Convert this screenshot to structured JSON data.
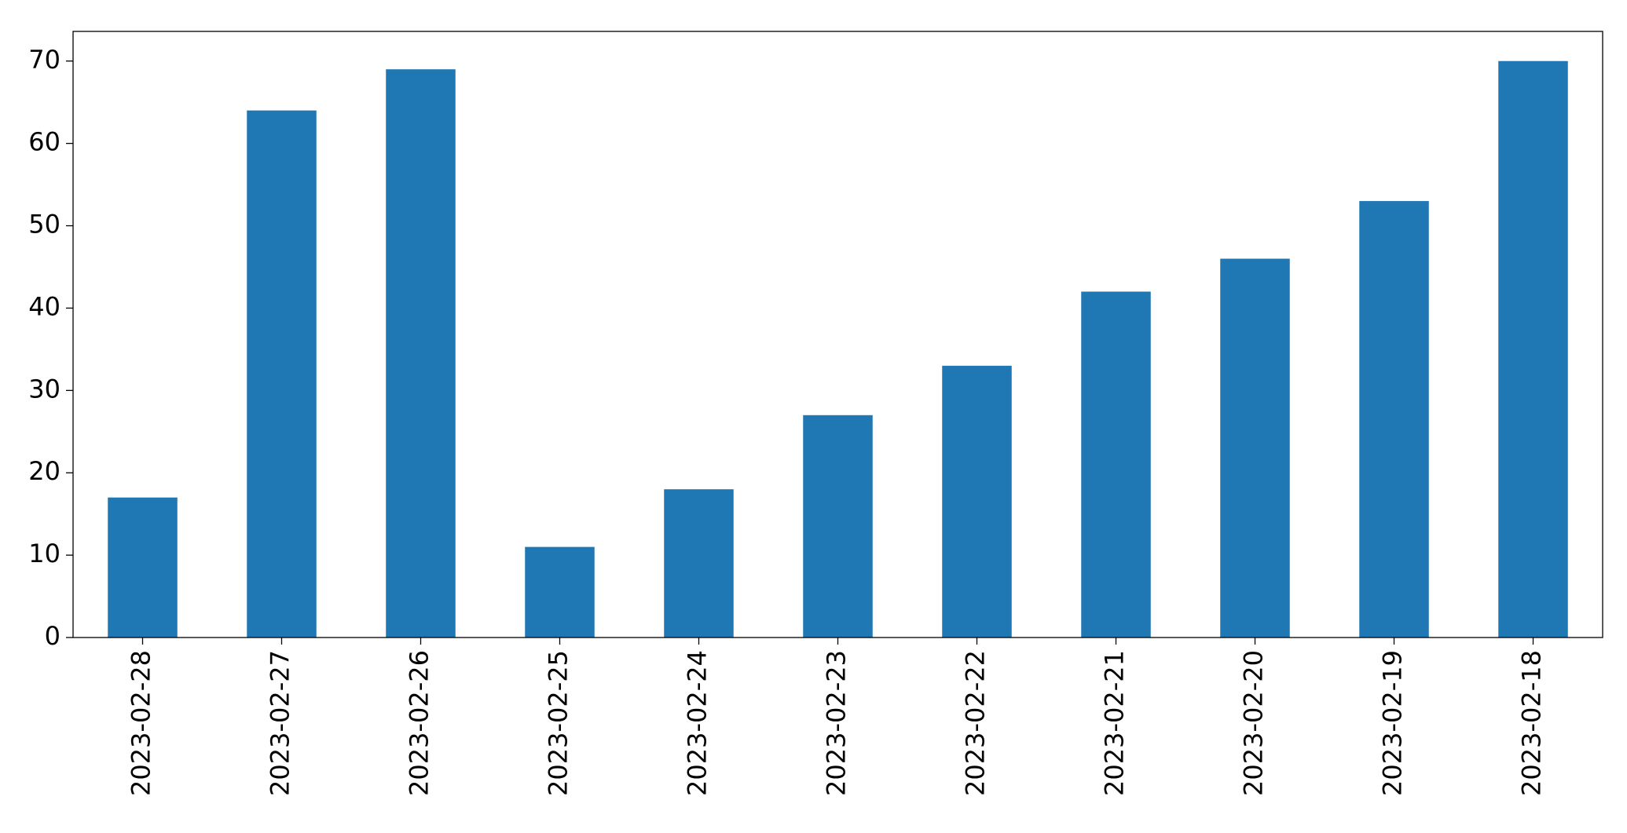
{
  "chart_data": {
    "type": "bar",
    "categories": [
      "2023-02-28",
      "2023-02-27",
      "2023-02-26",
      "2023-02-25",
      "2023-02-24",
      "2023-02-23",
      "2023-02-22",
      "2023-02-21",
      "2023-02-20",
      "2023-02-19",
      "2023-02-18"
    ],
    "values": [
      17,
      64,
      69,
      11,
      18,
      27,
      33,
      42,
      46,
      53,
      70
    ],
    "color": "#1f77b4",
    "ylim": [
      0,
      73.6
    ],
    "yticks": [
      0,
      10,
      20,
      30,
      40,
      50,
      60,
      70
    ],
    "grid": false
  }
}
